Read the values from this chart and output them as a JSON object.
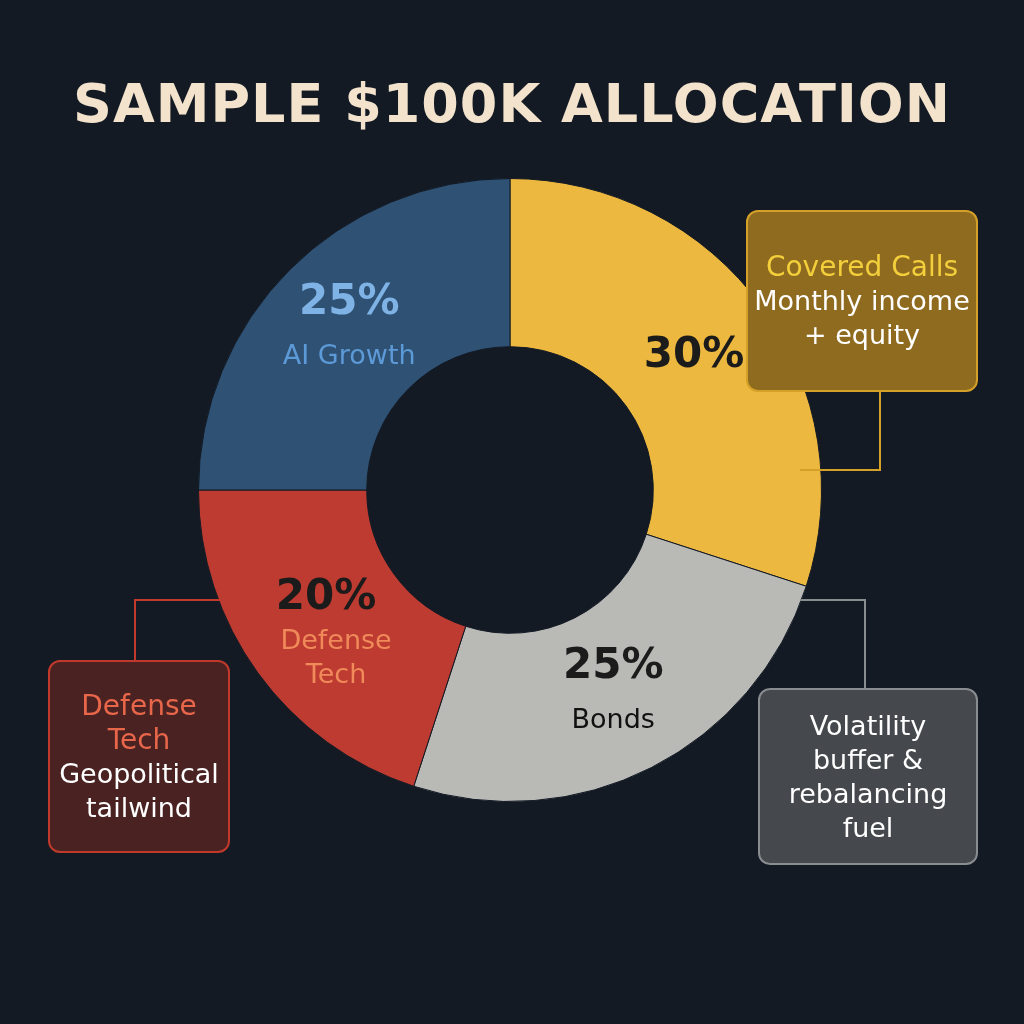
{
  "chart_data": {
    "type": "donut",
    "title": "SAMPLE $100K ALLOCATION",
    "categories": [
      "Covered Calls",
      "Bonds",
      "Defense Tech",
      "AI Growth"
    ],
    "values": [
      30,
      25,
      20,
      25
    ],
    "colors": [
      "#ecb83f",
      "#b9b9b6",
      "#bd3b30",
      "#2f5173"
    ],
    "value_labels": [
      "30%",
      "25%",
      "20%",
      "25%"
    ],
    "annotations": [
      "Monthly income + equity",
      "Geopolitical tailwind",
      "Volatility buffer & rebalancing fuel"
    ],
    "legend": false
  }
}
